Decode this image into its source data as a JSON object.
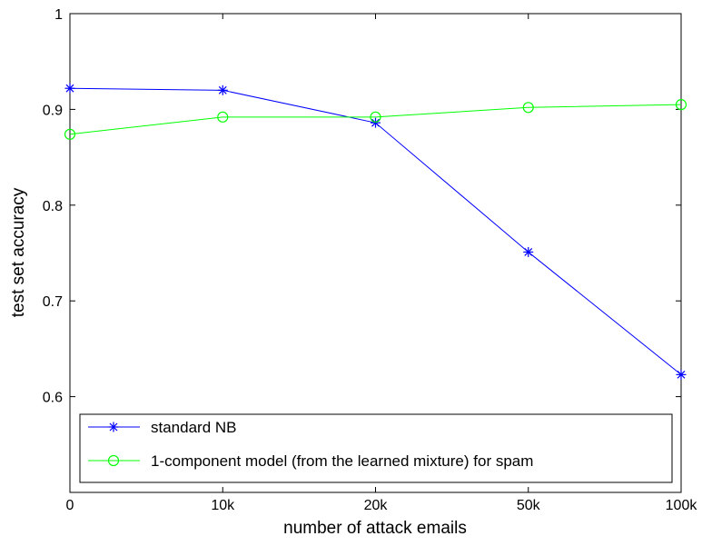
{
  "chart_data": {
    "type": "line",
    "title": "",
    "xlabel": "number of attack emails",
    "ylabel": "test set accuracy",
    "categories": [
      "0",
      "10k",
      "20k",
      "50k",
      "100k"
    ],
    "ylim": [
      0.5,
      1.0
    ],
    "yticks": [
      "0.6",
      "0.7",
      "0.8",
      "0.9",
      "1"
    ],
    "grid": false,
    "legend_position": "bottom",
    "series": [
      {
        "name": "standard NB",
        "values": [
          0.922,
          0.92,
          0.886,
          0.751,
          0.623
        ],
        "color": "#0000ff",
        "marker": "asterisk"
      },
      {
        "name": "1-component model (from the learned mixture) for spam",
        "values": [
          0.874,
          0.892,
          0.892,
          0.902,
          0.905
        ],
        "color": "#00ff00",
        "marker": "circle"
      }
    ]
  }
}
